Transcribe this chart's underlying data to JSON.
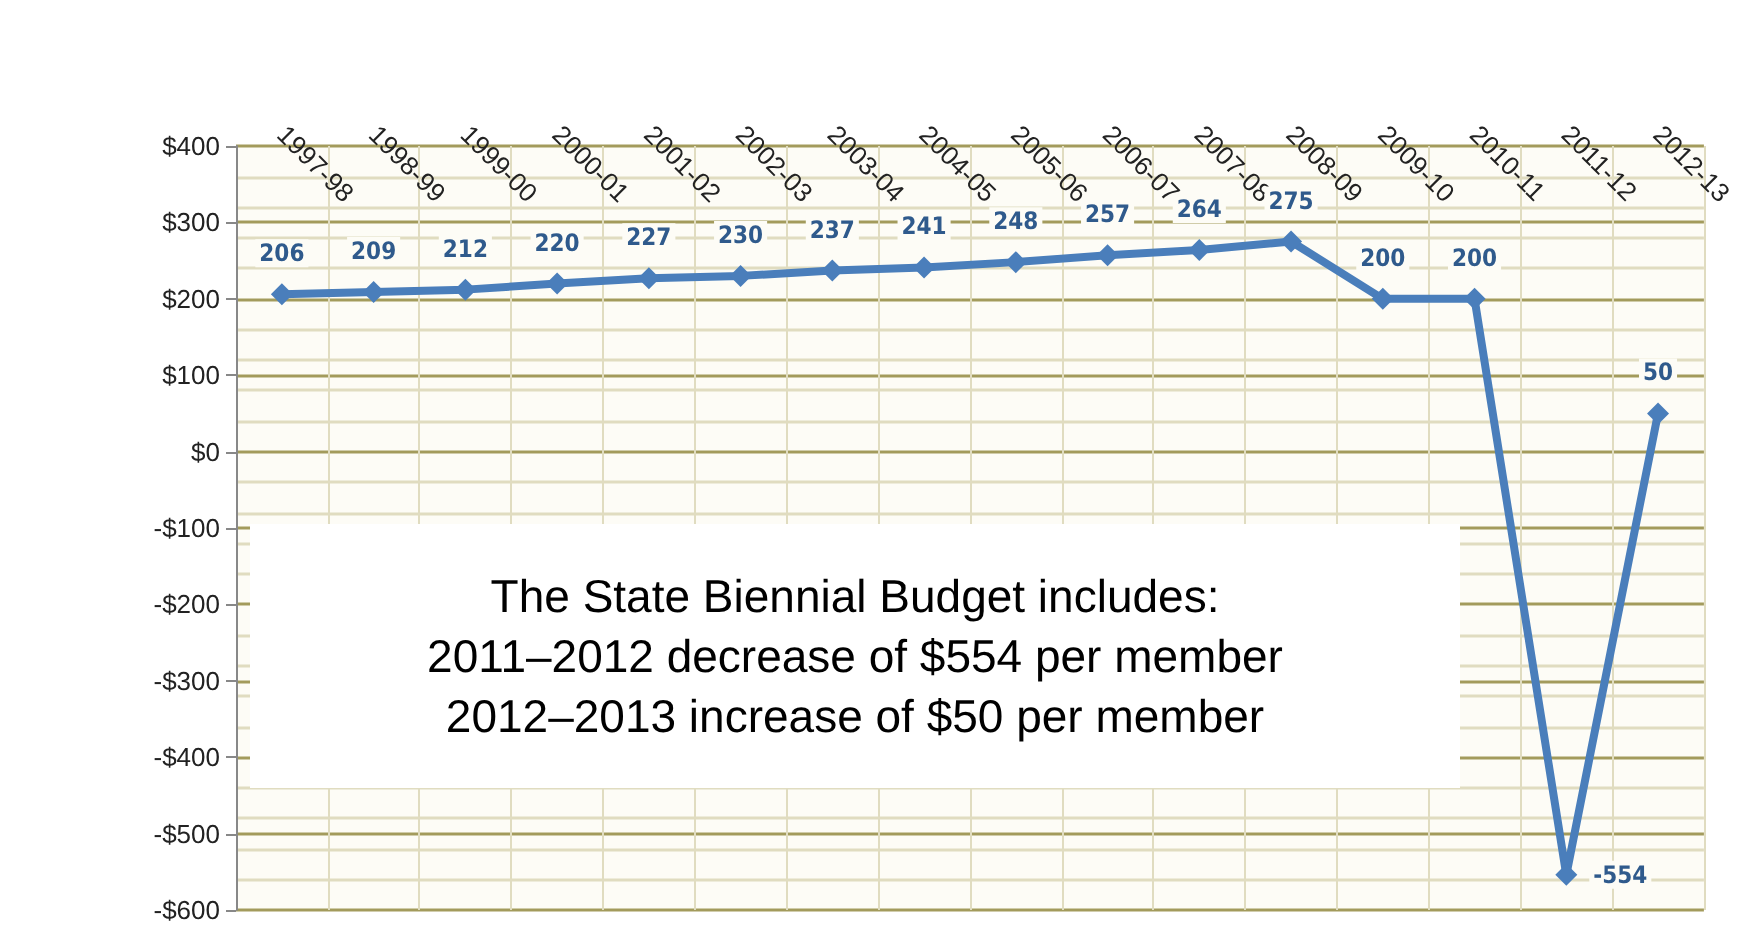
{
  "chart_data": {
    "type": "line",
    "categories": [
      "1997-98",
      "1998-99",
      "1999-00",
      "2000-01",
      "2001-02",
      "2002-03",
      "2003-04",
      "2004-05",
      "2005-06",
      "2006-07",
      "2007-08",
      "2008-09",
      "2009-10",
      "2010-11",
      "2011-12",
      "2012-13"
    ],
    "series": [
      {
        "color": "#4a7ebb",
        "values": [
          206,
          209,
          212,
          220,
          227,
          230,
          237,
          241,
          248,
          257,
          264,
          275,
          200,
          200,
          -554,
          50
        ]
      }
    ],
    "ylim": [
      -600,
      400
    ],
    "yticks": [
      {
        "value": -600,
        "label": "-$600"
      },
      {
        "value": -500,
        "label": "-$500"
      },
      {
        "value": -400,
        "label": "-$400"
      },
      {
        "value": -300,
        "label": "-$300"
      },
      {
        "value": -200,
        "label": "-$200"
      },
      {
        "value": -100,
        "label": "-$100"
      },
      {
        "value": 0,
        "label": "$0"
      },
      {
        "value": 100,
        "label": "$100"
      },
      {
        "value": 200,
        "label": "$200"
      },
      {
        "value": 300,
        "label": "$300"
      },
      {
        "value": 400,
        "label": "$400"
      }
    ],
    "annotations": [
      "The State Biennial Budget includes:\n2011–2012 decrease of $554 per member\n2012–2013 increase of $50 per member"
    ],
    "data_labels": true,
    "grid": true,
    "marker": "diamond",
    "line_style": "solid"
  }
}
